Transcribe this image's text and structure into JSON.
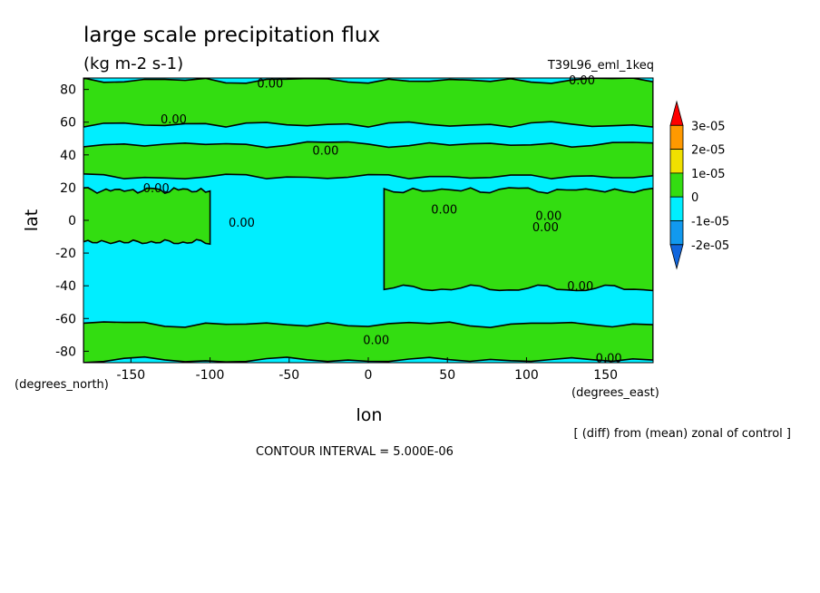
{
  "chart_data": {
    "type": "heatmap",
    "title": "large scale precipitation flux",
    "units": "(kg m-2 s-1)",
    "experiment": "T39L96_eml_1keq",
    "xlabel": "lon",
    "ylabel": "lat",
    "x_units": "(degrees_east)",
    "y_units": "(degrees_north)",
    "xlim": [
      -180,
      180
    ],
    "ylim": [
      -87,
      87
    ],
    "x_ticks": [
      -150,
      -100,
      -50,
      0,
      50,
      100,
      150
    ],
    "y_ticks": [
      80,
      60,
      40,
      20,
      0,
      -20,
      -40,
      -60,
      -80
    ],
    "x_tick_labels": [
      "-150",
      "-100",
      "-50",
      "0",
      "50",
      "100",
      "150"
    ],
    "y_tick_labels": [
      "80",
      "60",
      "40",
      "20",
      "0",
      "-20",
      "-40",
      "-60",
      "-80"
    ],
    "note": "[ (diff) from (mean) zonal of control ]",
    "contour_interval_text": "CONTOUR INTERVAL = 5.000E-06",
    "contour_label": "0.00",
    "colorbar": {
      "levels": [
        "3e-05",
        "2e-05",
        "1e-05",
        "0",
        "-1e-05",
        "-2e-05"
      ],
      "colors": [
        "#ff0000",
        "#ff9900",
        "#f0e000",
        "#33dd11",
        "#00eeff",
        "#1199ee",
        "#1166dd"
      ]
    },
    "palette": {
      "negative": "#00eeff",
      "positive": "#33dd11",
      "contour": "#000000"
    },
    "positive_regions": [
      {
        "label": "north polar band",
        "lon": [
          -180,
          180
        ],
        "lat": [
          57,
          87
        ]
      },
      {
        "label": "northern mid-latitude band",
        "lon": [
          -180,
          180
        ],
        "lat": [
          25,
          48
        ]
      },
      {
        "label": "eastern tropical region",
        "lon": [
          10,
          180
        ],
        "lat": [
          -43,
          20
        ]
      },
      {
        "label": "western tropical region",
        "lon": [
          -180,
          -100
        ],
        "lat": [
          -15,
          20
        ]
      },
      {
        "label": "southern region",
        "lon": [
          -180,
          180
        ],
        "lat": [
          -87,
          -62
        ]
      }
    ],
    "contour_labels": [
      {
        "lon": -62,
        "lat": 84
      },
      {
        "lon": 135,
        "lat": 86
      },
      {
        "lon": -123,
        "lat": 62
      },
      {
        "lon": -27,
        "lat": 43
      },
      {
        "lon": -134,
        "lat": 20
      },
      {
        "lon": 48,
        "lat": 7
      },
      {
        "lon": 114,
        "lat": 3
      },
      {
        "lon": -80,
        "lat": -1
      },
      {
        "lon": 112,
        "lat": -4
      },
      {
        "lon": 134,
        "lat": -40
      },
      {
        "lon": 5,
        "lat": -73
      },
      {
        "lon": 152,
        "lat": -84
      }
    ]
  }
}
